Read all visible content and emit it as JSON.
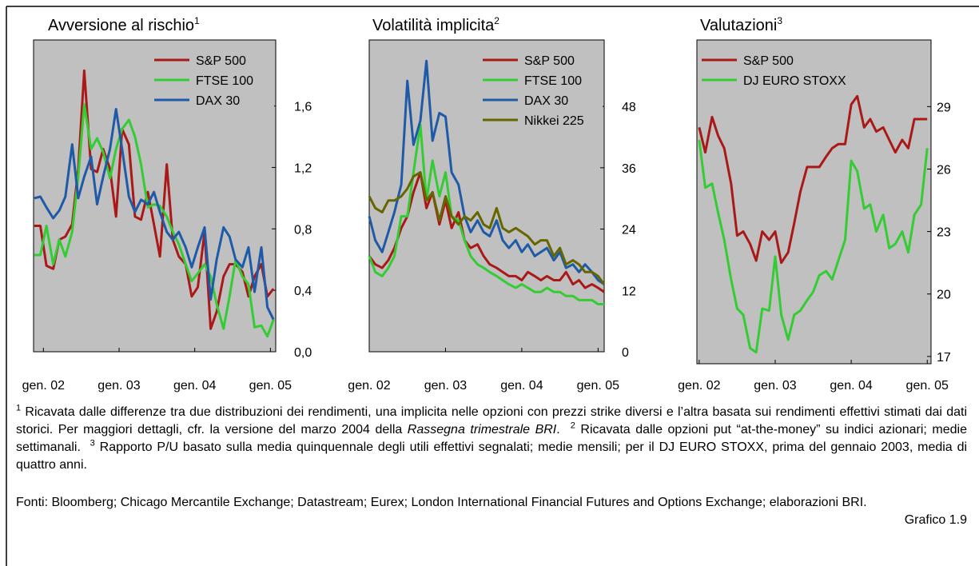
{
  "chart_data": [
    {
      "type": "line",
      "title": "Avversione al rischio",
      "title_footnote": "1",
      "legend": "upper right",
      "background": "#c0c0c0",
      "xlim": [
        2001.87,
        2005.07
      ],
      "xticks": [
        {
          "value": 2002,
          "label": "gen. 02"
        },
        {
          "value": 2003,
          "label": "gen. 03"
        },
        {
          "value": 2004,
          "label": "gen. 04"
        },
        {
          "value": 2005,
          "label": "gen. 05"
        }
      ],
      "ylim": [
        0,
        2.03
      ],
      "yticks": [
        {
          "value": 0,
          "label": "0,0"
        },
        {
          "value": 0.4,
          "label": "0,4"
        },
        {
          "value": 0.8,
          "label": "0,8"
        },
        {
          "value": 1.2,
          "label": "1,2"
        },
        {
          "value": 1.6,
          "label": "1,6"
        }
      ],
      "x": [
        2001.88,
        2001.96,
        2002.04,
        2002.13,
        2002.21,
        2002.29,
        2002.38,
        2002.46,
        2002.54,
        2002.63,
        2002.71,
        2002.79,
        2002.88,
        2002.96,
        2003.04,
        2003.13,
        2003.21,
        2003.29,
        2003.38,
        2003.46,
        2003.54,
        2003.63,
        2003.71,
        2003.79,
        2003.88,
        2003.96,
        2004.04,
        2004.13,
        2004.21,
        2004.29,
        2004.38,
        2004.46,
        2004.54,
        2004.63,
        2004.71,
        2004.79,
        2004.88,
        2004.96,
        2005.04
      ],
      "series": [
        {
          "name": "S&P 500",
          "color": "#aa1818",
          "values": [
            0.82,
            0.82,
            0.56,
            0.54,
            0.73,
            0.75,
            0.83,
            1.19,
            1.83,
            1.19,
            1.17,
            1.32,
            1.19,
            0.88,
            1.45,
            1.35,
            0.88,
            0.86,
            1.04,
            0.83,
            0.62,
            1.22,
            0.73,
            0.62,
            0.57,
            0.36,
            0.42,
            0.78,
            0.15,
            0.26,
            0.49,
            0.57,
            0.57,
            0.52,
            0.36,
            0.49,
            0.57,
            0.36,
            0.41
          ]
        },
        {
          "name": "FTSE 100",
          "color": "#33cc33",
          "values": [
            0.63,
            0.63,
            0.82,
            0.57,
            0.73,
            0.62,
            0.78,
            1.14,
            1.61,
            1.32,
            1.39,
            1.3,
            1.13,
            1.32,
            1.45,
            1.51,
            1.4,
            1.22,
            0.94,
            0.96,
            0.95,
            0.88,
            0.78,
            0.7,
            0.57,
            0.46,
            0.51,
            0.57,
            0.49,
            0.31,
            0.15,
            0.36,
            0.6,
            0.49,
            0.44,
            0.16,
            0.17,
            0.1,
            0.21
          ]
        },
        {
          "name": "DAX 30",
          "color": "#1f5aa8",
          "values": [
            1.0,
            1.01,
            0.94,
            0.87,
            0.92,
            1.01,
            1.35,
            1.0,
            1.14,
            1.27,
            0.96,
            1.14,
            1.32,
            1.58,
            1.32,
            1.01,
            0.91,
            0.99,
            0.96,
            1.04,
            0.91,
            0.78,
            0.73,
            0.78,
            0.68,
            0.55,
            0.68,
            0.81,
            0.34,
            0.6,
            0.81,
            0.75,
            0.6,
            0.55,
            0.68,
            0.39,
            0.68,
            0.29,
            0.21
          ]
        }
      ]
    },
    {
      "type": "line",
      "title": "Volatilità implicita",
      "title_footnote": "2",
      "legend": "upper right",
      "background": "#c0c0c0",
      "xlim": [
        2002.0,
        2005.08
      ],
      "xticks": [
        {
          "value": 2002,
          "label": "gen. 02"
        },
        {
          "value": 2003,
          "label": "gen. 03"
        },
        {
          "value": 2004,
          "label": "gen. 04"
        },
        {
          "value": 2005,
          "label": "gen. 05"
        }
      ],
      "ylim": [
        0,
        61
      ],
      "yticks": [
        0,
        12,
        24,
        36,
        48
      ],
      "x": [
        2002.0,
        2002.08,
        2002.17,
        2002.25,
        2002.33,
        2002.42,
        2002.5,
        2002.58,
        2002.67,
        2002.75,
        2002.83,
        2002.92,
        2003.0,
        2003.08,
        2003.17,
        2003.25,
        2003.33,
        2003.42,
        2003.5,
        2003.58,
        2003.67,
        2003.75,
        2003.83,
        2003.92,
        2004.0,
        2004.08,
        2004.17,
        2004.25,
        2004.33,
        2004.42,
        2004.5,
        2004.58,
        2004.67,
        2004.75,
        2004.83,
        2004.92,
        2005.0,
        2005.08
      ],
      "series": [
        {
          "name": "S&P 500",
          "color": "#aa1818",
          "values": [
            18.7,
            17.1,
            16.4,
            17.9,
            20.3,
            24.2,
            26.5,
            31.2,
            35.1,
            28.1,
            31.2,
            24.9,
            29.6,
            24.2,
            27.3,
            21.8,
            20.3,
            21.0,
            18.7,
            17.1,
            16.4,
            15.6,
            14.8,
            14.8,
            14.0,
            15.6,
            14.8,
            14.0,
            14.8,
            14.0,
            14.0,
            15.6,
            13.2,
            14.0,
            12.5,
            13.2,
            12.5,
            11.7
          ]
        },
        {
          "name": "FTSE 100",
          "color": "#33cc33",
          "values": [
            18.7,
            15.6,
            14.8,
            16.4,
            18.7,
            26.5,
            26.5,
            35.1,
            44.4,
            29.6,
            37.4,
            30.4,
            35.1,
            26.5,
            25.7,
            21.8,
            18.7,
            17.1,
            16.4,
            15.6,
            14.8,
            14.0,
            13.2,
            12.5,
            13.2,
            12.5,
            11.7,
            11.7,
            12.5,
            11.7,
            11.7,
            10.9,
            10.9,
            10.1,
            10.1,
            10.1,
            9.3,
            9.3
          ]
        },
        {
          "name": "DAX 30",
          "color": "#1f5aa8",
          "values": [
            26.5,
            21.8,
            19.5,
            23.4,
            27.3,
            32.7,
            53.0,
            40.5,
            45.2,
            56.9,
            41.3,
            46.7,
            46.0,
            35.1,
            32.7,
            26.5,
            23.4,
            25.7,
            23.4,
            22.6,
            25.7,
            21.8,
            20.3,
            21.8,
            19.5,
            21.0,
            18.7,
            19.5,
            20.3,
            17.9,
            19.5,
            16.4,
            17.1,
            15.6,
            17.1,
            15.6,
            14.0,
            13.2
          ]
        },
        {
          "name": "Nikkei 225",
          "color": "#666600",
          "values": [
            30.4,
            28.1,
            27.3,
            29.6,
            29.6,
            30.4,
            31.9,
            34.3,
            35.1,
            29.6,
            31.2,
            25.7,
            30.4,
            26.5,
            24.9,
            26.5,
            25.7,
            27.3,
            24.9,
            24.2,
            28.1,
            24.2,
            23.4,
            24.2,
            23.4,
            22.6,
            21.0,
            21.8,
            21.8,
            18.7,
            20.3,
            17.1,
            17.9,
            17.1,
            15.6,
            15.6,
            14.8,
            13.2
          ]
        }
      ]
    },
    {
      "type": "line",
      "title": "Valutazioni",
      "title_footnote": "3",
      "legend": "upper left",
      "background": "#c0c0c0",
      "xlim": [
        2001.97,
        2005.05
      ],
      "xticks": [
        {
          "value": 2002,
          "label": "gen. 02"
        },
        {
          "value": 2003,
          "label": "gen. 03"
        },
        {
          "value": 2004,
          "label": "gen. 04"
        },
        {
          "value": 2005,
          "label": "gen. 05"
        }
      ],
      "ylim": [
        16.65,
        32.2
      ],
      "yticks": [
        17,
        20,
        23,
        26,
        29
      ],
      "x": [
        2002.0,
        2002.08,
        2002.17,
        2002.25,
        2002.33,
        2002.42,
        2002.5,
        2002.58,
        2002.67,
        2002.75,
        2002.83,
        2002.92,
        2003.0,
        2003.08,
        2003.17,
        2003.25,
        2003.33,
        2003.42,
        2003.5,
        2003.58,
        2003.67,
        2003.75,
        2003.83,
        2003.92,
        2004.0,
        2004.08,
        2004.17,
        2004.25,
        2004.33,
        2004.42,
        2004.5,
        2004.58,
        2004.67,
        2004.75,
        2004.83,
        2004.92,
        2005.0
      ],
      "series": [
        {
          "name": "S&P 500",
          "color": "#aa1818",
          "values": [
            28.0,
            26.8,
            28.5,
            27.6,
            27.0,
            25.3,
            22.8,
            23.0,
            22.4,
            21.6,
            23.0,
            22.6,
            23.0,
            21.5,
            22.0,
            23.4,
            24.9,
            26.1,
            26.1,
            26.1,
            26.6,
            27.0,
            27.2,
            27.2,
            29.1,
            29.5,
            28.0,
            28.4,
            27.8,
            28.0,
            27.4,
            26.8,
            27.4,
            27.0,
            28.4,
            28.4,
            28.4
          ]
        },
        {
          "name": "DJ EURO STOXX",
          "color": "#33cc33",
          "values": [
            27.4,
            25.1,
            25.3,
            23.9,
            22.6,
            20.7,
            19.3,
            19.0,
            17.4,
            17.2,
            19.3,
            19.2,
            21.8,
            19.0,
            17.8,
            19.0,
            19.2,
            19.7,
            20.1,
            20.9,
            21.1,
            20.7,
            21.6,
            22.6,
            26.4,
            25.9,
            24.1,
            24.3,
            23.0,
            23.8,
            22.2,
            22.4,
            23.0,
            22.0,
            23.8,
            24.3,
            27.0
          ]
        }
      ]
    }
  ],
  "footnotes": [
    {
      "marker": "1",
      "text": "Ricavata dalle differenze tra due distribuzioni dei rendimenti, una implicita nelle opzioni con prezzi strike diversi e l’altra basata sui rendimenti effettivi stimati dai dati storici. Per maggiori dettagli, cfr. la versione del marzo 2004 della",
      "emphasis": "Rassegna trimestrale BRI",
      "text_after": "."
    },
    {
      "marker": "2",
      "text": "Ricavata dalle opzioni put “at-the-money” su indici azionari; medie settimanali."
    },
    {
      "marker": "3",
      "text": "Rapporto P/U basato sulla media quinquennale degli utili effettivi segnalati; medie mensili; per il DJ EURO STOXX, prima del gennaio 2003, media di quattro anni."
    }
  ],
  "sources": "Fonti: Bloomberg; Chicago Mercantile Exchange; Datastream; Eurex; London International Financial Futures and Options Exchange; elaborazioni BRI.",
  "figure_label": "Grafico 1.9"
}
